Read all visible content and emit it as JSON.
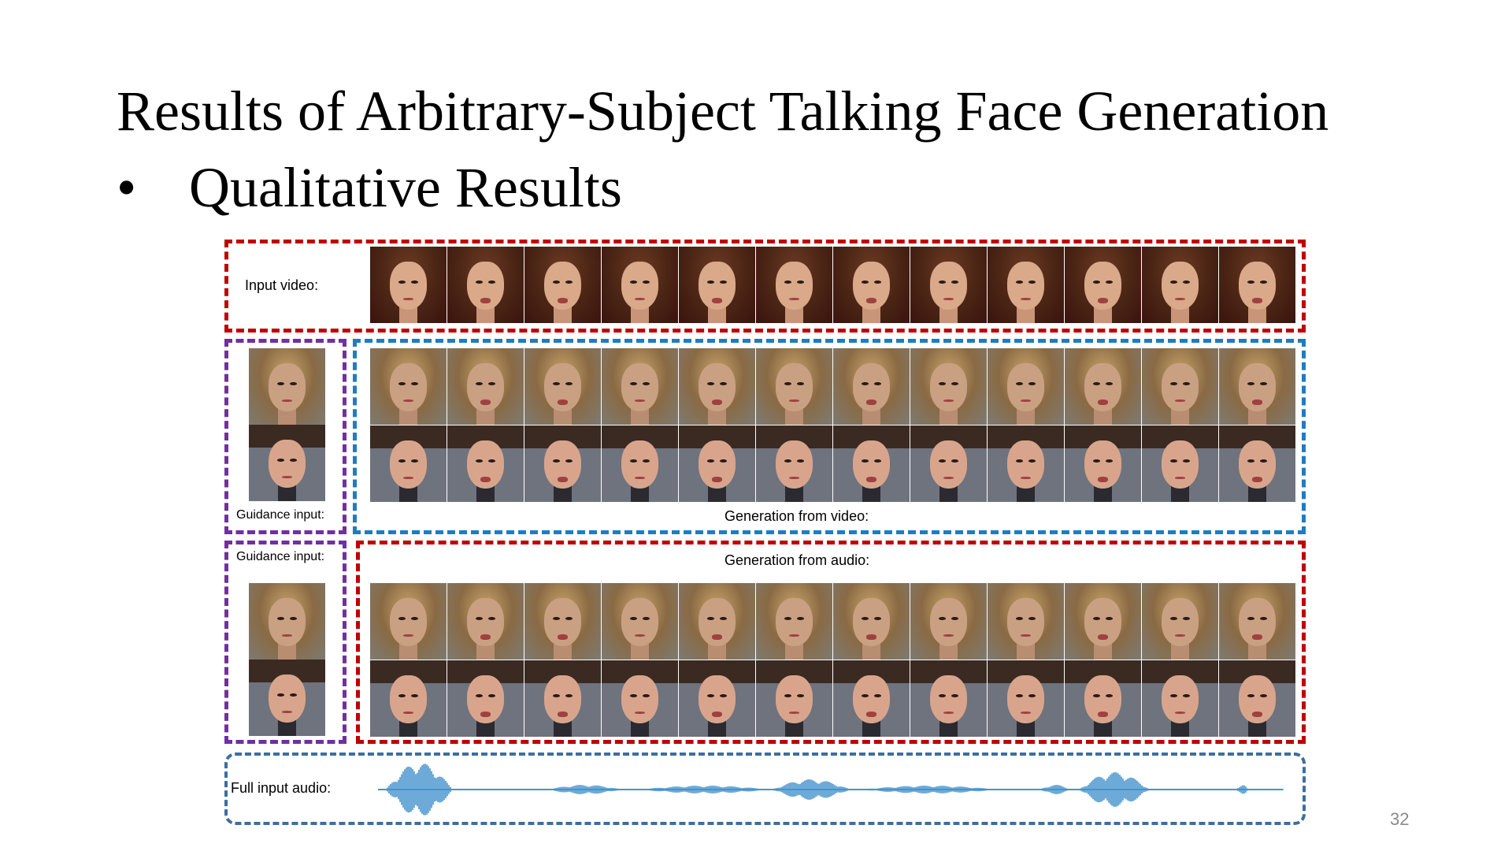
{
  "slide": {
    "title": "Results of Arbitrary-Subject Talking Face Generation",
    "bullet": "Qualitative Results",
    "bullet_marker": "•",
    "page_number": "32"
  },
  "labels": {
    "input_video": "Input video:",
    "guidance_input_top": "Guidance input:",
    "generation_from_video": "Generation from video:",
    "guidance_input_bottom": "Guidance input:",
    "generation_from_audio": "Generation from audio:",
    "full_input_audio": "Full input audio:"
  },
  "colors": {
    "red_box": "#c00000",
    "blue_box": "#1f7cc1",
    "purple_box": "#7030a0",
    "audio_box": "#3c6ea0",
    "waveform": "#1f7cc1"
  },
  "frames_per_row": 12
}
